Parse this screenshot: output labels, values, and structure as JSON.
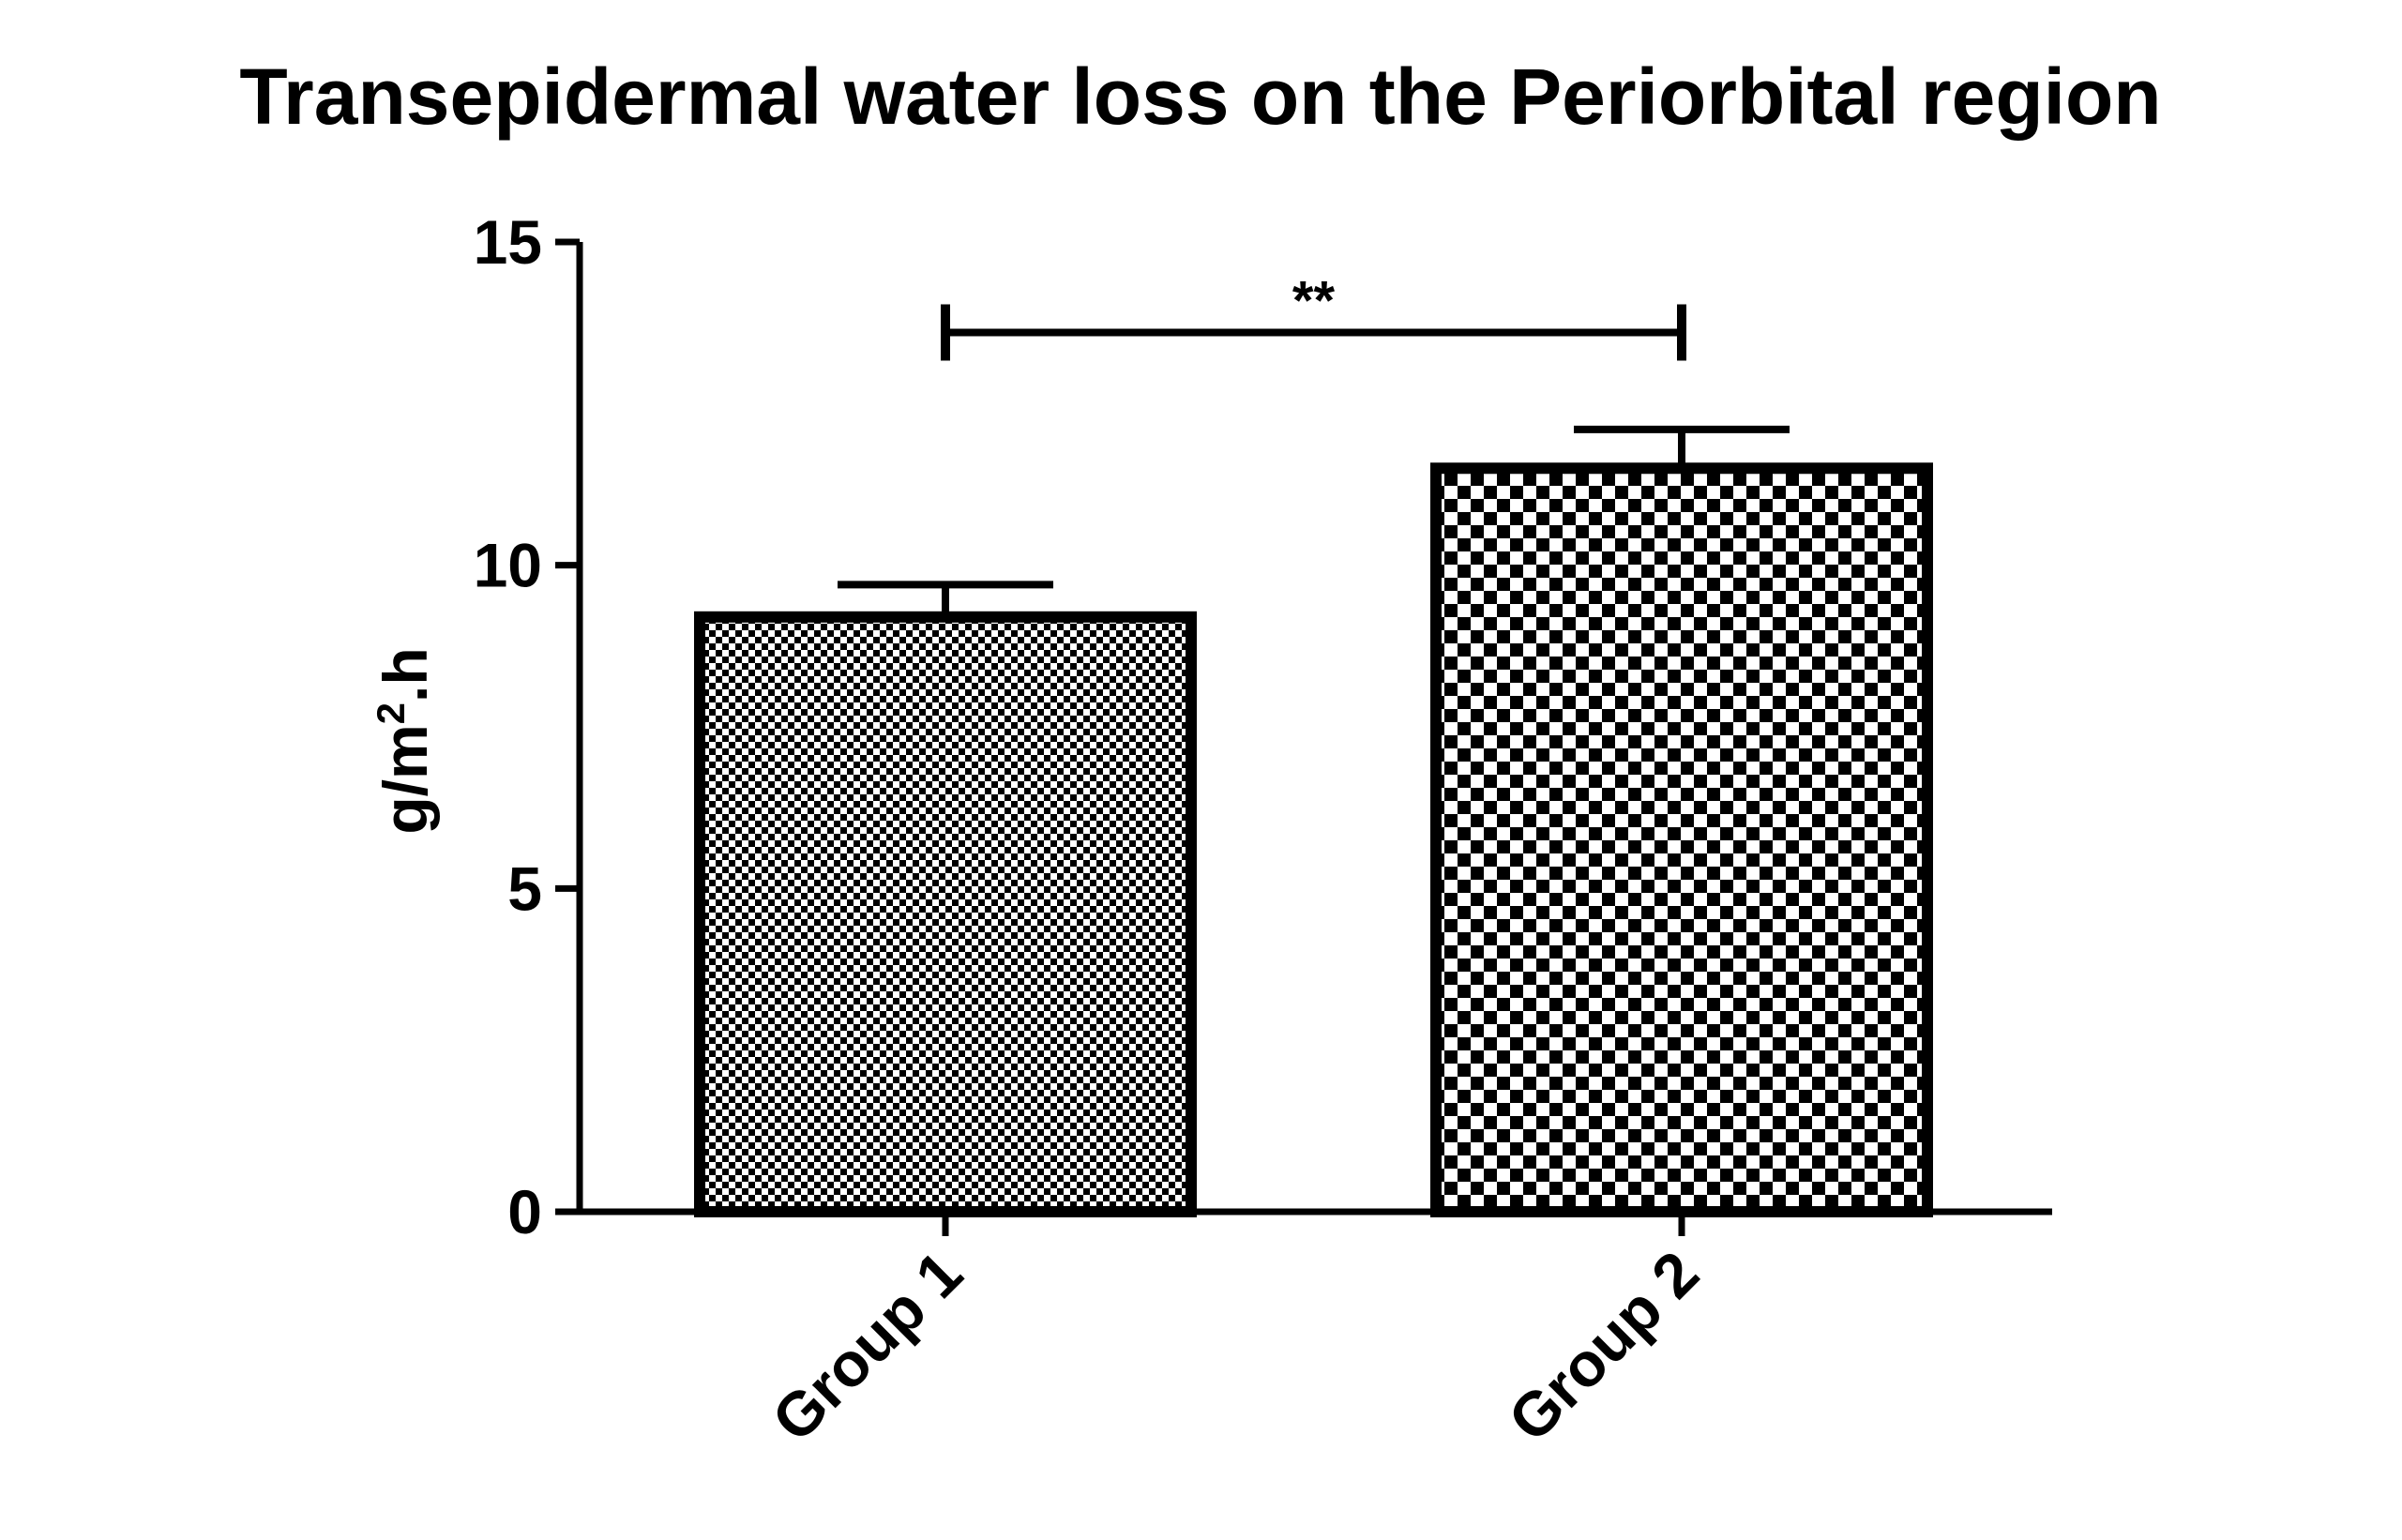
{
  "chart_data": {
    "type": "bar",
    "title": "Transepidermal water loss on the Periorbital region",
    "ylabel_main": "g/m",
    "ylabel_sup": "2",
    "ylabel_tail": ".h",
    "xlabel": "",
    "categories": [
      "Group 1",
      "Group 2"
    ],
    "values": [
      9.2,
      11.5
    ],
    "error_upper": [
      0.5,
      0.6
    ],
    "ylim": [
      0,
      15
    ],
    "yticks": [
      0,
      5,
      10,
      15
    ],
    "ytick_labels": [
      "0",
      "5",
      "10",
      "15"
    ],
    "grid": false,
    "legend": "none",
    "bar_patterns": [
      "fine-checker",
      "coarse-checker"
    ],
    "significance": {
      "between": [
        "Group 1",
        "Group 2"
      ],
      "label": "**",
      "level": 13.6
    }
  },
  "colors": {
    "ink": "#000000",
    "background": "#ffffff"
  }
}
